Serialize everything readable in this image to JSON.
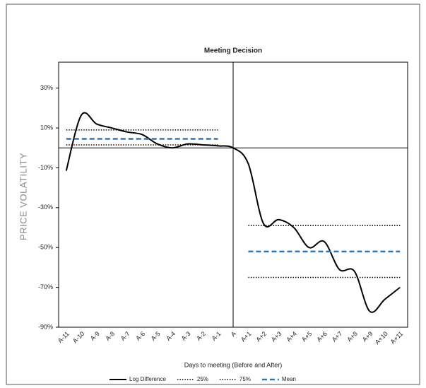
{
  "chart_data": {
    "type": "line",
    "title": "Meeting Decision",
    "x_label": "Days to meeting (Before and After)",
    "y_label": "PRICE VOLATILITY",
    "categories": [
      "A-11",
      "A-10",
      "A-9",
      "A-8",
      "A-7",
      "A-6",
      "A-5",
      "A-4",
      "A-3",
      "A-2",
      "A-1",
      "A",
      "A+1",
      "A+2",
      "A+3",
      "A+4",
      "A+5",
      "A+6",
      "A+7",
      "A+8",
      "A+9",
      "A+10",
      "A+11"
    ],
    "series": [
      {
        "name": "Log Difference",
        "color": "#000000",
        "style": "solid",
        "values": [
          -11.5,
          16.5,
          12,
          10,
          8,
          6.7,
          2,
          0,
          2,
          1.5,
          1,
          0,
          -8,
          -38,
          -36,
          -40,
          -50,
          -47,
          -61,
          -62,
          -82,
          -76,
          -70
        ]
      },
      {
        "name": "25%",
        "color": "#000000",
        "style": "dotted",
        "values": [
          1.5,
          1.5,
          1.5,
          1.5,
          1.5,
          1.5,
          1.5,
          1.5,
          1.5,
          1.5,
          1.5,
          null,
          -65,
          -65,
          -65,
          -65,
          -65,
          -65,
          -65,
          -65,
          -65,
          -65,
          -65
        ]
      },
      {
        "name": "75%",
        "color": "#000000",
        "style": "dotted",
        "values": [
          9,
          9,
          9,
          9,
          9,
          9,
          9,
          9,
          9,
          9,
          9,
          null,
          -39,
          -39,
          -39,
          -39,
          -39,
          -39,
          -39,
          -39,
          -39,
          -39,
          -39
        ]
      },
      {
        "name": "Mean",
        "color": "#2e75b6",
        "style": "dashed",
        "values": [
          4.5,
          4.5,
          4.5,
          4.5,
          4.5,
          4.5,
          4.5,
          4.5,
          4.5,
          4.5,
          4.5,
          null,
          -52,
          -52,
          -52,
          -52,
          -52,
          -52,
          -52,
          -52,
          -52,
          -52,
          -52
        ]
      }
    ],
    "ylim": [
      -90,
      43
    ],
    "yticks": [
      {
        "value": 30,
        "label": "30%"
      },
      {
        "value": 10,
        "label": "10%"
      },
      {
        "value": -10,
        "label": "-10%"
      },
      {
        "value": -30,
        "label": "-30%"
      },
      {
        "value": -50,
        "label": "-50%"
      },
      {
        "value": -70,
        "label": "-70%"
      },
      {
        "value": -90,
        "label": "-90%"
      }
    ],
    "legend": "bottom"
  }
}
